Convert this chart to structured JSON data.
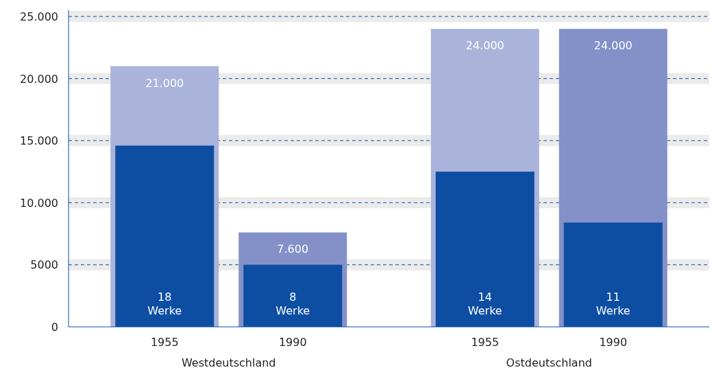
{
  "chart_data": {
    "type": "bar",
    "categories": [
      "1955",
      "1990",
      "1955",
      "1990"
    ],
    "series": [
      {
        "colors": [
          "#aab3d9",
          "#8391c8",
          "#aab3d9",
          "#8391c8"
        ],
        "values": [
          21000,
          7600,
          24000,
          24000
        ],
        "value_labels": [
          "21.000",
          "7.600",
          "24.000",
          "24.000"
        ]
      },
      {
        "color": "#0d4ea3",
        "values": [
          14600,
          5000,
          12500,
          8400
        ]
      }
    ],
    "ylim": [
      0,
      25500
    ],
    "yticks": [
      0,
      5000,
      {
        "value": 10000,
        "label": "10.000"
      },
      {
        "value": 15000,
        "label": "15.000"
      },
      {
        "value": 20000,
        "label": "20.000"
      },
      {
        "value": 25000,
        "label": "25.000"
      }
    ],
    "grid": "y",
    "bands": [
      {
        "axis": "y",
        "from": 4550,
        "to": 5450,
        "color": "#ebebeb"
      },
      {
        "axis": "y",
        "from": 9550,
        "to": 10450,
        "color": "#ebebeb"
      },
      {
        "axis": "y",
        "from": 14550,
        "to": 15450,
        "color": "#ebebeb"
      },
      {
        "axis": "y",
        "from": 19550,
        "to": 20450,
        "color": "#ebebeb"
      },
      {
        "axis": "y",
        "from": 24550,
        "to": 25450,
        "color": "#ebebeb"
      }
    ],
    "annotations": [
      "18 Werke",
      "8 Werke",
      "14 Werke",
      "11 Werke",
      "Westdeutschland",
      "Ostdeutschland"
    ]
  }
}
